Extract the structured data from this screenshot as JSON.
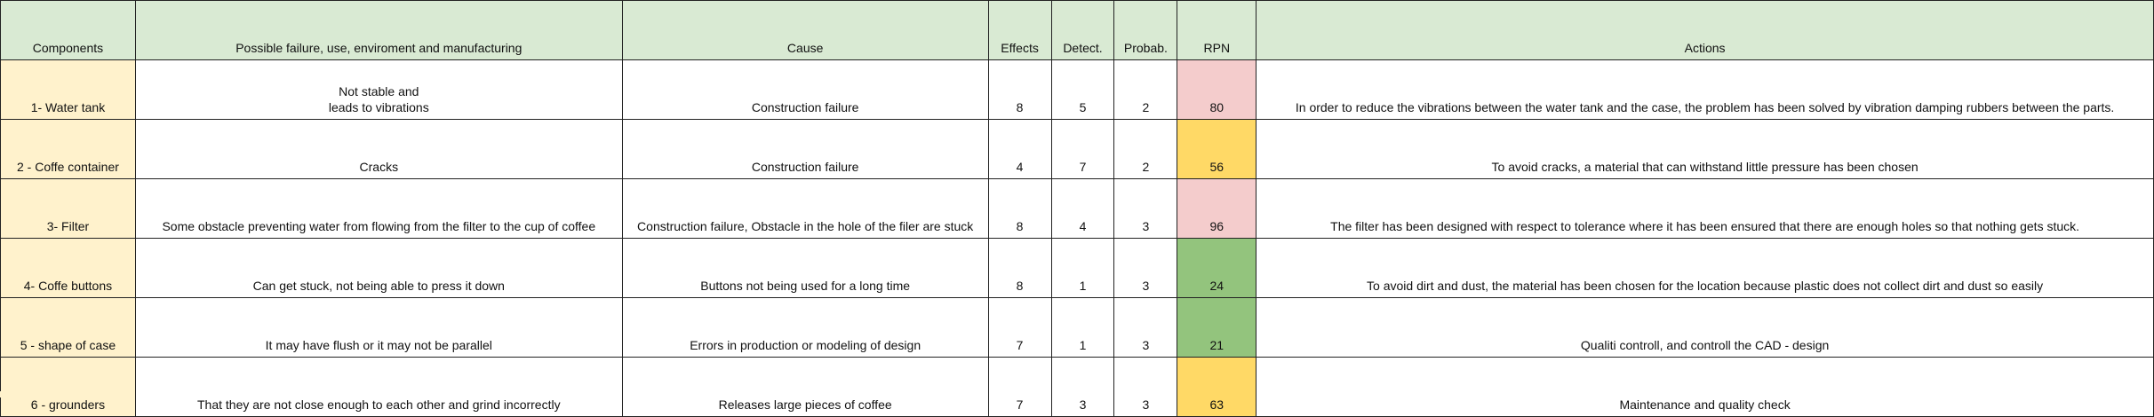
{
  "headers": {
    "components": "Components",
    "failure": "Possible failure, use, enviroment and manufacturing",
    "cause": "Cause",
    "effects": "Effects",
    "detect": "Detect.",
    "probab": "Probab.",
    "rpn": "RPN",
    "actions": "Actions"
  },
  "rows": [
    {
      "component": "1- Water tank",
      "failure_line1": "Not stable and",
      "failure_line2": "leads to vibrations",
      "cause": "Construction failure",
      "effects": "8",
      "detect": "5",
      "probab": "2",
      "rpn": "80",
      "rpn_color": "#f4cccc",
      "action": "In order to reduce the vibrations between the water tank and the case, the problem has been solved by  vibration damping rubbers between the parts."
    },
    {
      "component": "2 - Coffe container",
      "failure": "Cracks",
      "cause": "Construction failure",
      "effects": "4",
      "detect": "7",
      "probab": "2",
      "rpn": "56",
      "rpn_color": "#ffd966",
      "action": "To avoid cracks, a material that can withstand little pressure has been chosen"
    },
    {
      "component": "3- Filter",
      "failure": "Some obstacle preventing water from flowing from the filter to the cup of coffee",
      "cause": "Construction failure, Obstacle in the hole of the filer are stuck",
      "effects": "8",
      "detect": "4",
      "probab": "3",
      "rpn": "96",
      "rpn_color": "#f4cccc",
      "action": "The filter has been designed with respect to tolerance where it has been ensured that there are enough holes so that nothing gets stuck."
    },
    {
      "component": "4- Coffe buttons",
      "failure": "Can get stuck, not being able to press it down",
      "cause": "Buttons not being used for a long time",
      "effects": "8",
      "detect": "1",
      "probab": "3",
      "rpn": "24",
      "rpn_color": "#93c47d",
      "action": "To avoid dirt and dust, the material has been chosen for the location because plastic does not collect dirt and dust so easily"
    },
    {
      "component": "5 - shape of case",
      "failure": "It may have flush or it may not be parallel",
      "cause": "Errors in production or modeling of design",
      "effects": "7",
      "detect": "1",
      "probab": "3",
      "rpn": "21",
      "rpn_color": "#93c47d",
      "action": "Qualiti controll, and controll the  CAD - design"
    },
    {
      "component": "6 - grounders",
      "failure": "That they are not close enough to each other and grind incorrectly",
      "cause": "Releases large pieces of coffee",
      "effects": "7",
      "detect": "3",
      "probab": "3",
      "rpn": "63",
      "rpn_color": "#ffd966",
      "action": "Maintenance and quality check"
    }
  ]
}
